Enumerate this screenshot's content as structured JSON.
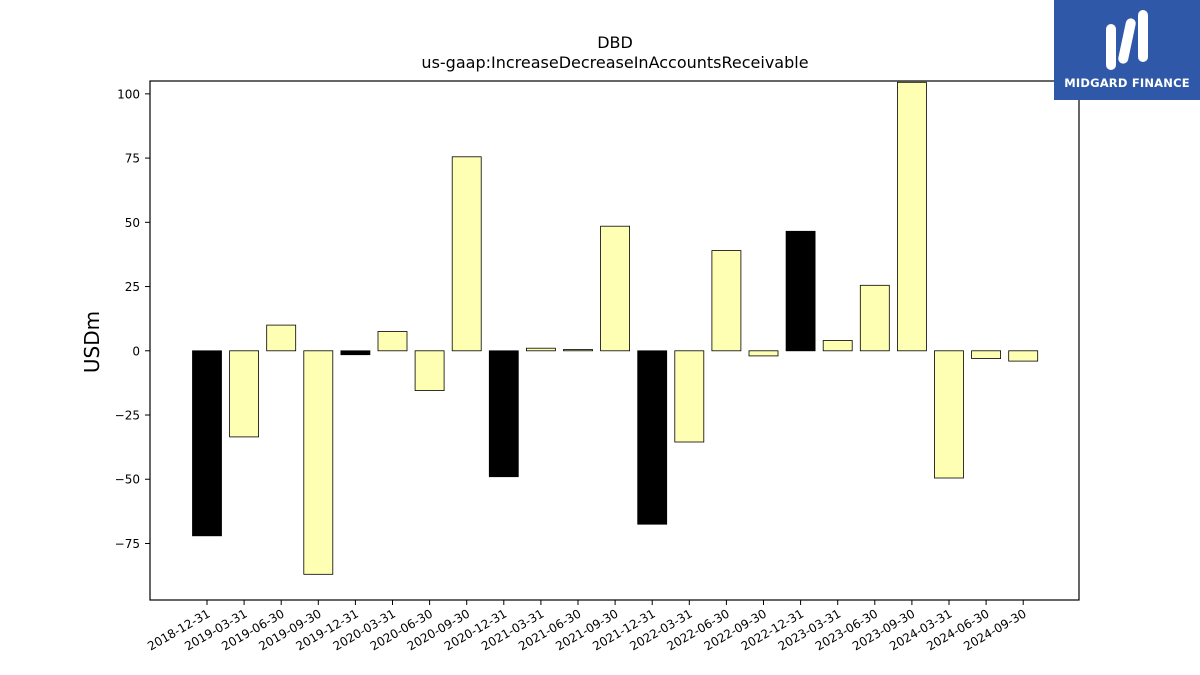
{
  "chart_data": {
    "type": "bar",
    "title": "DBD",
    "subtitle": "us-gaap:IncreaseDecreaseInAccountsReceivable",
    "xlabel": "",
    "ylabel": "USDm",
    "ylim": [
      -97,
      105
    ],
    "yticks": [
      100,
      75,
      50,
      25,
      0,
      -25,
      -50,
      -75
    ],
    "ytick_labels": [
      "100",
      "75",
      "50",
      "25",
      "0",
      "−25",
      "−50",
      "−75"
    ],
    "grid": false,
    "categories": [
      "2018-12-31",
      "2019-03-31",
      "2019-06-30",
      "2019-09-30",
      "2019-12-31",
      "2020-03-31",
      "2020-06-30",
      "2020-09-30",
      "2020-12-31",
      "2021-03-31",
      "2021-06-30",
      "2021-09-30",
      "2021-12-31",
      "2022-03-31",
      "2022-06-30",
      "2022-09-30",
      "2022-12-31",
      "2023-03-31",
      "2023-06-30",
      "2023-09-30",
      "2024-03-31",
      "2024-06-30",
      "2024-09-30"
    ],
    "values": [
      -72,
      -33.5,
      10,
      -87,
      -1.5,
      7.5,
      -15.5,
      75.5,
      -49,
      1,
      0.5,
      48.5,
      -67.5,
      -35.5,
      39,
      -2,
      46.5,
      4,
      25.5,
      104.5,
      -49.5,
      -3,
      -4
    ],
    "bar_colors": [
      "#000000",
      "#ffffb3",
      "#ffffb3",
      "#ffffb3",
      "#000000",
      "#ffffb3",
      "#ffffb3",
      "#ffffb3",
      "#000000",
      "#ffffb3",
      "#ffffb3",
      "#ffffb3",
      "#000000",
      "#ffffb3",
      "#ffffb3",
      "#ffffb3",
      "#000000",
      "#ffffb3",
      "#ffffb3",
      "#ffffb3",
      "#ffffb3",
      "#ffffb3",
      "#ffffb3"
    ]
  },
  "logo": {
    "text": "MIDGARD FINANCE",
    "background": "#2f59a8"
  }
}
